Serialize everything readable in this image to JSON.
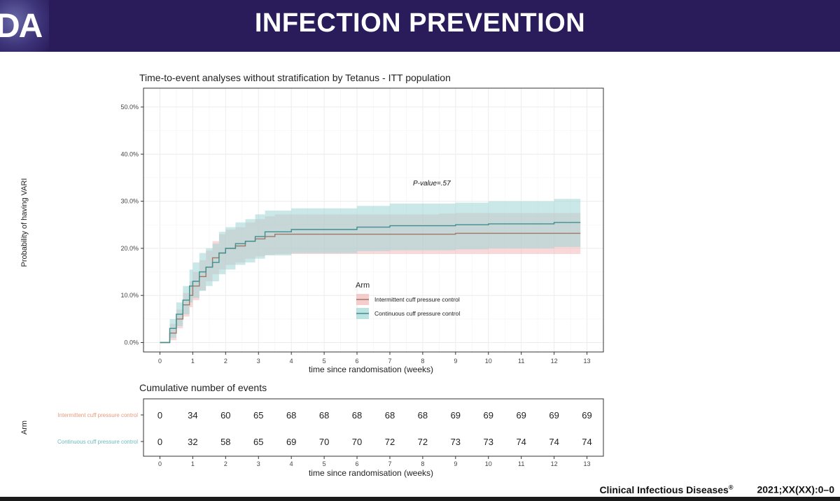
{
  "header": {
    "logo": "DA",
    "title": "INFECTION PREVENTION"
  },
  "chart_data": {
    "type": "line",
    "title": "Time-to-event analyses without stratification by Tetanus - ITT population",
    "xlabel": "time since randomisation (weeks)",
    "ylabel": "Probability of having VARI",
    "xlim": [
      -0.5,
      13.5
    ],
    "ylim": [
      -0.02,
      0.54
    ],
    "x_ticks": [
      0,
      1,
      2,
      3,
      4,
      5,
      6,
      7,
      8,
      9,
      10,
      11,
      12,
      13
    ],
    "y_ticks": [
      0,
      0.1,
      0.2,
      0.3,
      0.4,
      0.5
    ],
    "y_tick_labels": [
      "0.0%",
      "10.0%",
      "20.0%",
      "30.0%",
      "40.0%",
      "50.0%"
    ],
    "grid": true,
    "annotation": "P-value=.57",
    "legend": {
      "title": "Arm",
      "position": "center",
      "entries": [
        "Intermittent cuff pressure control",
        "Continuous cuff pressure control"
      ]
    },
    "series": [
      {
        "name": "Intermittent cuff pressure control",
        "color": "#a07868",
        "band_color": "#f2b8b8",
        "x": [
          0,
          0.3,
          0.5,
          0.7,
          0.9,
          1.0,
          1.2,
          1.4,
          1.6,
          1.8,
          2.0,
          2.3,
          2.6,
          2.9,
          3.2,
          3.5,
          5,
          8.5,
          9,
          12.8
        ],
        "y": [
          0,
          0.02,
          0.05,
          0.08,
          0.1,
          0.12,
          0.14,
          0.16,
          0.18,
          0.19,
          0.2,
          0.205,
          0.215,
          0.22,
          0.225,
          0.23,
          0.23,
          0.23,
          0.232,
          0.232
        ],
        "lower": [
          0,
          0.005,
          0.03,
          0.055,
          0.075,
          0.09,
          0.11,
          0.13,
          0.145,
          0.155,
          0.165,
          0.17,
          0.178,
          0.183,
          0.186,
          0.188,
          0.188,
          0.188,
          0.188,
          0.185
        ],
        "upper": [
          0,
          0.04,
          0.07,
          0.105,
          0.13,
          0.15,
          0.175,
          0.195,
          0.215,
          0.23,
          0.24,
          0.245,
          0.255,
          0.262,
          0.268,
          0.272,
          0.272,
          0.274,
          0.275,
          0.28
        ]
      },
      {
        "name": "Continuous cuff pressure control",
        "color": "#3e8f8f",
        "band_color": "#9fd6d6",
        "x": [
          0,
          0.3,
          0.5,
          0.7,
          0.9,
          1.0,
          1.2,
          1.4,
          1.6,
          1.8,
          2.0,
          2.3,
          2.6,
          2.9,
          3.2,
          4.0,
          5.0,
          6.0,
          7.0,
          8.0,
          9.0,
          10.0,
          11.0,
          12.0,
          12.8
        ],
        "y": [
          0,
          0.03,
          0.06,
          0.09,
          0.12,
          0.13,
          0.15,
          0.16,
          0.17,
          0.19,
          0.2,
          0.21,
          0.215,
          0.225,
          0.235,
          0.24,
          0.24,
          0.245,
          0.248,
          0.248,
          0.25,
          0.252,
          0.252,
          0.255,
          0.255
        ],
        "lower": [
          0,
          0.01,
          0.035,
          0.06,
          0.085,
          0.095,
          0.11,
          0.12,
          0.13,
          0.145,
          0.155,
          0.165,
          0.17,
          0.178,
          0.185,
          0.19,
          0.19,
          0.194,
          0.196,
          0.196,
          0.198,
          0.2,
          0.2,
          0.203,
          0.203
        ],
        "upper": [
          0,
          0.05,
          0.085,
          0.12,
          0.155,
          0.17,
          0.19,
          0.2,
          0.21,
          0.235,
          0.245,
          0.255,
          0.262,
          0.272,
          0.28,
          0.285,
          0.285,
          0.29,
          0.295,
          0.295,
          0.297,
          0.3,
          0.3,
          0.305,
          0.305
        ]
      }
    ],
    "risk_table": {
      "title": "Cumulative number of events",
      "row_axis_label": "Arm",
      "xlabel": "time since randomisation (weeks)",
      "rows": [
        {
          "name": "Intermittent cuff pressure control",
          "color": "#e69a7d",
          "values": [
            "0",
            "34",
            "60",
            "65",
            "68",
            "68",
            "68",
            "68",
            "68",
            "69",
            "69",
            "69",
            "69",
            "69"
          ]
        },
        {
          "name": "Continuous cuff pressure control",
          "color": "#6fbaba",
          "values": [
            "0",
            "32",
            "58",
            "65",
            "69",
            "70",
            "70",
            "72",
            "72",
            "73",
            "73",
            "74",
            "74",
            "74"
          ]
        }
      ]
    }
  },
  "footer": {
    "journal": "Clinical Infectious Diseases",
    "registered": "®",
    "citation": "2021;XX(XX):0–0"
  }
}
